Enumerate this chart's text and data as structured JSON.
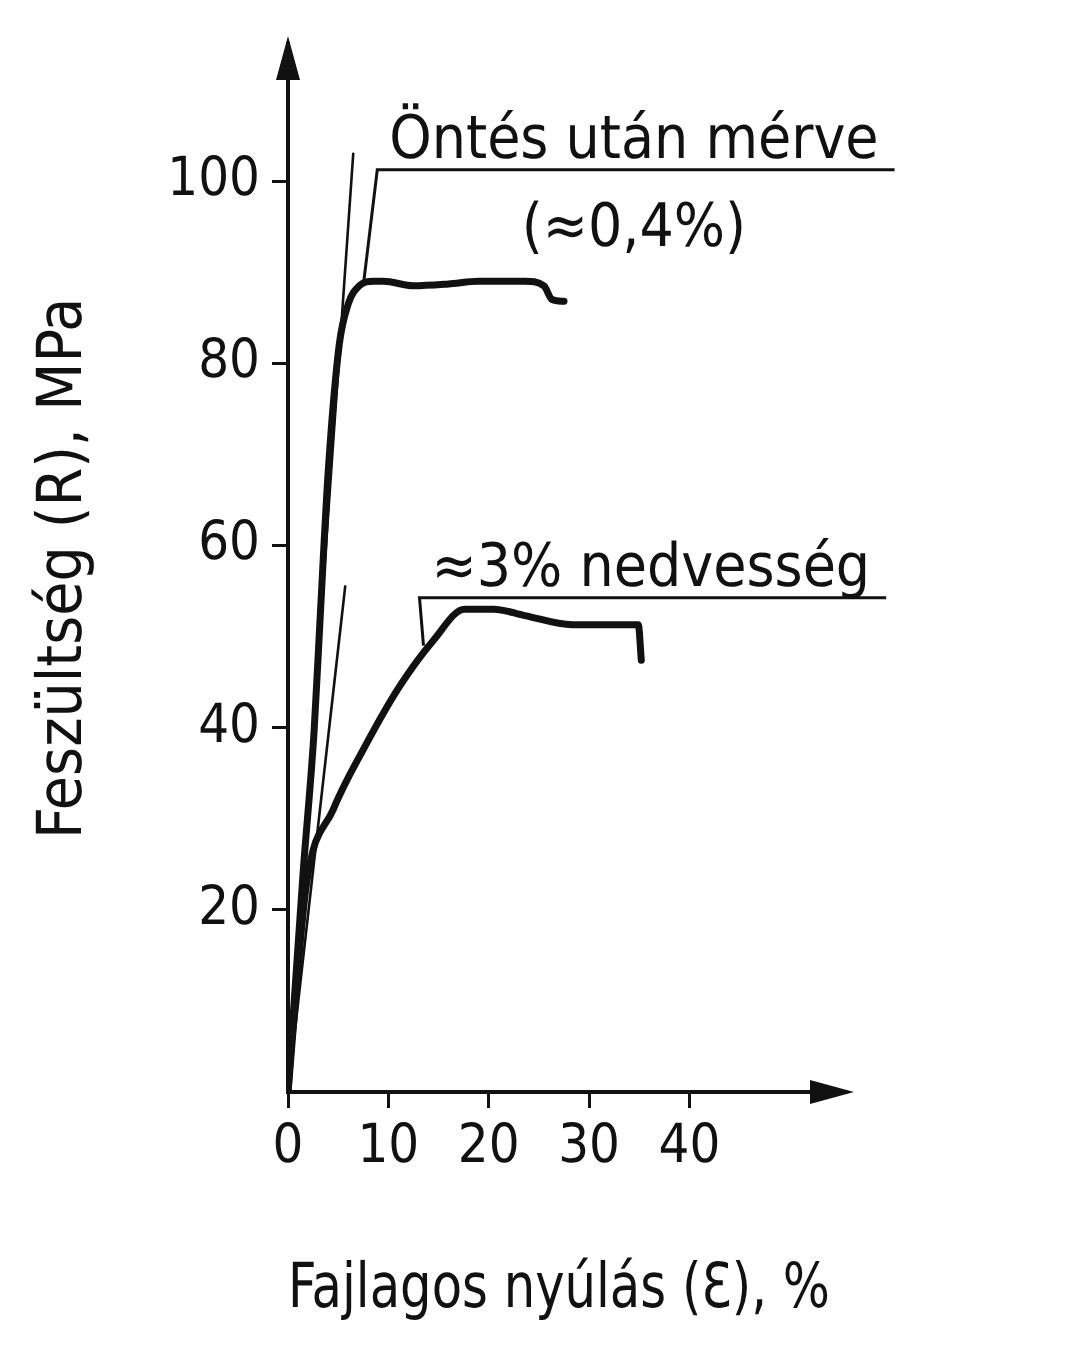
{
  "chart_data": {
    "type": "line",
    "xlabel": "Fajlagos nyúlás (Ɛ), %",
    "ylabel": "Feszültség (R), MPa",
    "xlim": [
      0,
      54
    ],
    "ylim": [
      0,
      115
    ],
    "xticks": [
      0,
      10,
      20,
      30,
      40
    ],
    "yticks": [
      20,
      40,
      60,
      80,
      100
    ],
    "grid": false,
    "legend": false,
    "marker": "none",
    "line_style": "solid",
    "series": [
      {
        "color": "#111111",
        "x": [
          0,
          1.5,
          2.6,
          3.2,
          4.0,
          5.1,
          6.0,
          7.1,
          8.5,
          9.5,
          12.5,
          16,
          19,
          23.6,
          25.5,
          26.3,
          27.5
        ],
        "values": [
          0,
          24,
          39.6,
          52,
          68,
          82,
          86.5,
          88.5,
          89,
          89,
          88.5,
          88.7,
          89,
          89,
          88.5,
          87,
          86.8
        ]
      },
      {
        "color": "#111111",
        "x": [
          0,
          1.8,
          4.5,
          7.7,
          11.1,
          14.5,
          17.6,
          20.5,
          23.6,
          28.3,
          34.9,
          35.2
        ],
        "values": [
          0,
          22.5,
          31,
          38,
          44.5,
          49.6,
          53,
          53,
          52.3,
          51.3,
          51.3,
          47.4
        ]
      },
      {
        "type": "line",
        "color": "#111111",
        "x": [
          0,
          6.5
        ],
        "values": [
          0,
          103
        ]
      },
      {
        "type": "line",
        "color": "#111111",
        "x": [
          0,
          5.7
        ],
        "values": [
          0,
          55.5
        ]
      }
    ],
    "annotations": [
      {
        "text": "Öntés után mérve",
        "x": 7.5,
        "y": 88.5
      },
      "(≈0,4%)",
      {
        "text": "≈3% nedvesség",
        "x": 13.5,
        "y": 49
      }
    ]
  }
}
